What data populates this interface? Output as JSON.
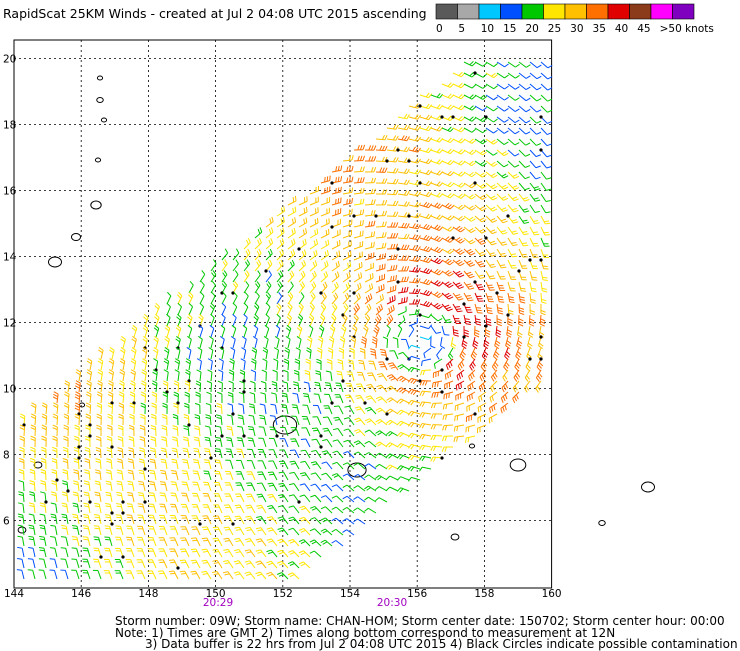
{
  "title": "RapidScat 25KM Winds - created at Jul  2 04:08 UTC 2015 ascending",
  "legend": {
    "labels": [
      "0",
      "5",
      "10",
      "15",
      "20",
      "25",
      "30",
      "35",
      "40",
      "45",
      ">50 knots"
    ],
    "colors": [
      "#5a5a5a",
      "#a8a8a8",
      "#00c8ff",
      "#0050ff",
      "#00c800",
      "#ffe600",
      "#ffc000",
      "#ff7000",
      "#e00000",
      "#8b3a1a",
      "#ff00ff",
      "#8000c0"
    ]
  },
  "map": {
    "lon_labels": [
      "144",
      "146",
      "148",
      "150",
      "152",
      "154",
      "156",
      "158",
      "160"
    ],
    "lat_labels": [
      "6",
      "8",
      "10",
      "12",
      "14",
      "16",
      "18",
      "20"
    ],
    "time_labels": [
      "20:29",
      "20:30"
    ],
    "time_color": "#a000c0"
  },
  "footer": {
    "line1": "Storm number: 09W;  Storm name: CHAN-HOM;  Storm center date: 150702;  Storm center hour: 00:00",
    "line2": "Note: 1) Times are GMT  2) Times along bottom correspond to measurement at 12N",
    "line3": "3) Data buffer is 22 hrs from Jul  2 04:08 UTC 2015  4) Black Circles indicate possible contamination"
  }
}
